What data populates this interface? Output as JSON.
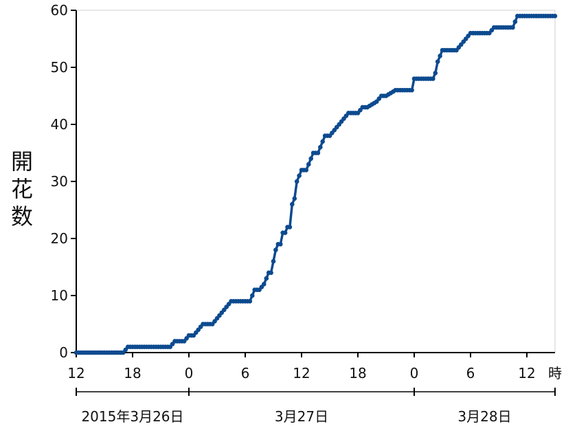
{
  "chart_data": {
    "type": "line",
    "title": "",
    "xlabel": "",
    "x_unit_label": "時",
    "ylabel": "開花数",
    "ylim": [
      0,
      60
    ],
    "xlim": [
      "2015-03-26 12:00",
      "2015-03-28 15:00"
    ],
    "y_ticks": [
      0,
      10,
      20,
      30,
      40,
      50,
      60
    ],
    "x_ticks": [
      {
        "time": "2015-03-26 12:00",
        "label": "12"
      },
      {
        "time": "2015-03-26 18:00",
        "label": "18"
      },
      {
        "time": "2015-03-27 00:00",
        "label": "0"
      },
      {
        "time": "2015-03-27 06:00",
        "label": "6"
      },
      {
        "time": "2015-03-27 12:00",
        "label": "12"
      },
      {
        "time": "2015-03-27 18:00",
        "label": "18"
      },
      {
        "time": "2015-03-28 00:00",
        "label": "0"
      },
      {
        "time": "2015-03-28 06:00",
        "label": "6"
      },
      {
        "time": "2015-03-28 12:00",
        "label": "12"
      }
    ],
    "date_labels": [
      {
        "label": "2015年3月26日",
        "from": "2015-03-26 12:00",
        "to": "2015-03-27 00:00"
      },
      {
        "label": "3月27日",
        "from": "2015-03-27 00:00",
        "to": "2015-03-28 00:00"
      },
      {
        "label": "3月28日",
        "from": "2015-03-28 00:00",
        "to": "2015-03-28 15:00"
      }
    ],
    "grid": false,
    "line_color": "#0d4a8f",
    "series": [
      {
        "x": [
          "2015-03-26 12:00",
          "2015-03-26 17:00",
          "2015-03-26 17:30",
          "2015-03-26 22:00",
          "2015-03-26 22:30",
          "2015-03-26 23:30",
          "2015-03-27 00:00",
          "2015-03-27 00:30",
          "2015-03-27 01:00",
          "2015-03-27 01:30",
          "2015-03-27 02:30",
          "2015-03-27 03:00",
          "2015-03-27 03:30",
          "2015-03-27 04:00",
          "2015-03-27 04:30",
          "2015-03-27 05:00",
          "2015-03-27 06:30",
          "2015-03-27 07:00",
          "2015-03-27 07:30",
          "2015-03-27 08:00",
          "2015-03-27 08:30",
          "2015-03-27 08:45",
          "2015-03-27 09:00",
          "2015-03-27 09:15",
          "2015-03-27 09:30",
          "2015-03-27 09:45",
          "2015-03-27 10:00",
          "2015-03-27 10:15",
          "2015-03-27 10:30",
          "2015-03-27 10:45",
          "2015-03-27 11:00",
          "2015-03-27 11:15",
          "2015-03-27 11:30",
          "2015-03-27 11:45",
          "2015-03-27 12:00",
          "2015-03-27 12:30",
          "2015-03-27 13:00",
          "2015-03-27 13:15",
          "2015-03-27 13:45",
          "2015-03-27 14:00",
          "2015-03-27 14:30",
          "2015-03-27 15:00",
          "2015-03-27 15:30",
          "2015-03-27 16:00",
          "2015-03-27 16:30",
          "2015-03-27 17:00",
          "2015-03-27 17:30",
          "2015-03-27 18:00",
          "2015-03-27 18:30",
          "2015-03-27 19:00",
          "2015-03-27 20:00",
          "2015-03-27 20:30",
          "2015-03-27 21:00",
          "2015-03-27 22:00",
          "2015-03-27 23:45",
          "2015-03-28 00:00",
          "2015-03-28 02:00",
          "2015-03-28 02:15",
          "2015-03-28 02:30",
          "2015-03-28 02:45",
          "2015-03-28 03:00",
          "2015-03-28 04:30",
          "2015-03-28 05:00",
          "2015-03-28 05:30",
          "2015-03-28 06:00",
          "2015-03-28 08:00",
          "2015-03-28 08:30",
          "2015-03-28 10:30",
          "2015-03-28 11:00",
          "2015-03-28 15:00"
        ],
        "values": [
          0,
          0,
          1,
          1,
          2,
          2,
          3,
          3,
          4,
          5,
          5,
          6,
          7,
          8,
          9,
          9,
          9,
          11,
          11,
          12,
          14,
          14,
          16,
          18,
          19,
          19,
          21,
          21,
          22,
          22,
          26,
          27,
          30,
          31,
          32,
          32,
          34,
          35,
          35,
          36,
          38,
          38,
          39,
          40,
          41,
          42,
          42,
          42,
          43,
          43,
          44,
          45,
          45,
          46,
          46,
          48,
          48,
          49,
          51,
          52,
          53,
          53,
          54,
          55,
          56,
          56,
          57,
          57,
          59,
          59
        ]
      }
    ]
  }
}
